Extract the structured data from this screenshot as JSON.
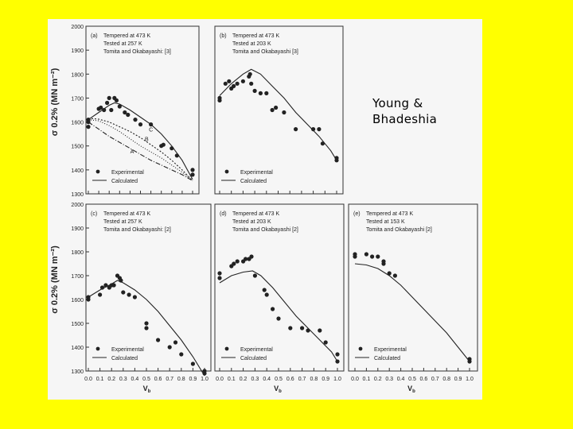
{
  "credit": {
    "line1": "Young &",
    "line2": "Bhadeshia"
  },
  "colors": {
    "background": "#ffff00",
    "figure": "#f6f6f6",
    "ink": "#222222"
  },
  "chart_data": [
    {
      "panel": "(a)",
      "type": "scatter",
      "notes": [
        "Tempered at 473 K",
        "Tested at 257 K",
        "Tomita and Okabayashi: [3]"
      ],
      "ylabel": "σ 0.2% (MN m⁻²)",
      "ylim": [
        1300,
        2000
      ],
      "y_ticks": [
        "2000",
        "1900",
        "1800",
        "1700",
        "1600",
        "1500",
        "1400",
        "1300"
      ],
      "x_ticks": [],
      "curve_labels": [
        "C",
        "B",
        "A"
      ],
      "legend": [
        "Experimental",
        "Calculated"
      ],
      "experimental": [
        [
          0.0,
          1600
        ],
        [
          0.0,
          1580
        ],
        [
          0.0,
          1610
        ],
        [
          0.1,
          1655
        ],
        [
          0.12,
          1660
        ],
        [
          0.15,
          1650
        ],
        [
          0.18,
          1680
        ],
        [
          0.2,
          1700
        ],
        [
          0.22,
          1650
        ],
        [
          0.25,
          1700
        ],
        [
          0.27,
          1690
        ],
        [
          0.3,
          1665
        ],
        [
          0.35,
          1640
        ],
        [
          0.38,
          1630
        ],
        [
          0.45,
          1610
        ],
        [
          0.5,
          1590
        ],
        [
          0.6,
          1590
        ],
        [
          0.7,
          1500
        ],
        [
          0.72,
          1505
        ],
        [
          0.8,
          1490
        ],
        [
          0.85,
          1460
        ],
        [
          1.0,
          1400
        ],
        [
          1.0,
          1380
        ]
      ],
      "calculated": [
        {
          "label": "",
          "x": [
            0.0,
            0.1,
            0.2,
            0.25,
            0.3,
            0.4,
            0.5,
            0.6,
            0.7,
            0.8,
            0.9,
            1.0
          ],
          "y": [
            1610,
            1640,
            1670,
            1680,
            1675,
            1650,
            1620,
            1590,
            1550,
            1500,
            1440,
            1360
          ]
        },
        {
          "label": "C",
          "x": [
            0.0,
            0.1,
            0.2,
            0.3,
            0.4,
            0.5,
            0.6,
            0.7,
            0.8,
            0.9,
            1.0
          ],
          "y": [
            1615,
            1612,
            1600,
            1580,
            1560,
            1535,
            1505,
            1475,
            1440,
            1400,
            1355
          ]
        },
        {
          "label": "B",
          "x": [
            0.0,
            0.1,
            0.2,
            0.3,
            0.4,
            0.5,
            0.6,
            0.7,
            0.8,
            0.9,
            1.0
          ],
          "y": [
            1610,
            1605,
            1585,
            1560,
            1530,
            1500,
            1475,
            1450,
            1420,
            1390,
            1355
          ]
        },
        {
          "label": "A",
          "x": [
            0.0,
            0.1,
            0.2,
            0.3,
            0.4,
            0.5,
            0.6,
            0.7,
            0.8,
            0.9,
            1.0
          ],
          "y": [
            1600,
            1570,
            1540,
            1515,
            1490,
            1465,
            1440,
            1420,
            1400,
            1380,
            1355
          ]
        }
      ]
    },
    {
      "panel": "(b)",
      "type": "scatter",
      "notes": [
        "Tempered at 473 K",
        "Tested at 203 K",
        "Tomita and Okabayashi [3]"
      ],
      "ylim": [
        1300,
        2000
      ],
      "x_ticks": [],
      "legend": [
        "Experimental",
        "Calculated"
      ],
      "experimental": [
        [
          0.0,
          1690
        ],
        [
          0.0,
          1700
        ],
        [
          0.05,
          1760
        ],
        [
          0.08,
          1770
        ],
        [
          0.1,
          1740
        ],
        [
          0.12,
          1750
        ],
        [
          0.15,
          1760
        ],
        [
          0.2,
          1770
        ],
        [
          0.25,
          1790
        ],
        [
          0.26,
          1800
        ],
        [
          0.27,
          1760
        ],
        [
          0.3,
          1730
        ],
        [
          0.35,
          1720
        ],
        [
          0.4,
          1720
        ],
        [
          0.45,
          1650
        ],
        [
          0.48,
          1660
        ],
        [
          0.55,
          1640
        ],
        [
          0.65,
          1570
        ],
        [
          0.8,
          1570
        ],
        [
          0.85,
          1570
        ],
        [
          0.88,
          1510
        ],
        [
          1.0,
          1450
        ],
        [
          1.0,
          1440
        ]
      ],
      "calculated": [
        {
          "label": "",
          "x": [
            0.0,
            0.1,
            0.2,
            0.27,
            0.35,
            0.45,
            0.55,
            0.65,
            0.75,
            0.85,
            0.95,
            1.0
          ],
          "y": [
            1710,
            1760,
            1800,
            1820,
            1800,
            1750,
            1700,
            1640,
            1590,
            1540,
            1480,
            1440
          ]
        }
      ]
    },
    {
      "panel": "(c)",
      "type": "scatter",
      "notes": [
        "Tempered at 473 K",
        "Tested at 257 K",
        "Tomita and Okabayashi: [2]"
      ],
      "ylabel": "σ 0.2% (MN m⁻²)",
      "xlabel": "V_b",
      "ylim": [
        1300,
        2000
      ],
      "y_ticks": [
        "2000",
        "1900",
        "1800",
        "1700",
        "1600",
        "1500",
        "1400",
        "1300"
      ],
      "x_ticks": [
        "0.0",
        "0.1",
        "0.2",
        "0.3",
        "0.4",
        "0.5",
        "0.6",
        "0.7",
        "0.8",
        "0.9",
        "1.0"
      ],
      "legend": [
        "Experimental",
        "Calculated"
      ],
      "experimental": [
        [
          0.0,
          1600
        ],
        [
          0.0,
          1610
        ],
        [
          0.1,
          1620
        ],
        [
          0.12,
          1650
        ],
        [
          0.15,
          1660
        ],
        [
          0.18,
          1650
        ],
        [
          0.2,
          1660
        ],
        [
          0.22,
          1660
        ],
        [
          0.25,
          1700
        ],
        [
          0.27,
          1690
        ],
        [
          0.28,
          1680
        ],
        [
          0.3,
          1630
        ],
        [
          0.35,
          1620
        ],
        [
          0.4,
          1610
        ],
        [
          0.5,
          1500
        ],
        [
          0.5,
          1480
        ],
        [
          0.6,
          1430
        ],
        [
          0.7,
          1400
        ],
        [
          0.75,
          1420
        ],
        [
          0.8,
          1370
        ],
        [
          0.9,
          1330
        ],
        [
          1.0,
          1300
        ],
        [
          1.0,
          1290
        ]
      ],
      "calculated": [
        {
          "label": "",
          "x": [
            0.0,
            0.1,
            0.2,
            0.25,
            0.3,
            0.4,
            0.5,
            0.6,
            0.7,
            0.8,
            0.9,
            1.0
          ],
          "y": [
            1610,
            1640,
            1665,
            1680,
            1670,
            1640,
            1600,
            1550,
            1490,
            1430,
            1360,
            1280
          ]
        }
      ]
    },
    {
      "panel": "(d)",
      "type": "scatter",
      "notes": [
        "Tempered at 473 K",
        "Tested at 203 K",
        "Tomita and Okabayashi [2]"
      ],
      "xlabel": "V_b",
      "ylim": [
        1300,
        2000
      ],
      "x_ticks": [
        "0.0",
        "0.1",
        "0.2",
        "0.3",
        "0.4",
        "0.5",
        "0.6",
        "0.7",
        "0.8",
        "0.9",
        "1.0"
      ],
      "legend": [
        "Experimental",
        "Calculated"
      ],
      "experimental": [
        [
          0.0,
          1690
        ],
        [
          0.0,
          1710
        ],
        [
          0.1,
          1740
        ],
        [
          0.12,
          1750
        ],
        [
          0.15,
          1760
        ],
        [
          0.2,
          1760
        ],
        [
          0.22,
          1770
        ],
        [
          0.25,
          1770
        ],
        [
          0.27,
          1780
        ],
        [
          0.3,
          1700
        ],
        [
          0.38,
          1640
        ],
        [
          0.4,
          1620
        ],
        [
          0.45,
          1560
        ],
        [
          0.5,
          1520
        ],
        [
          0.6,
          1480
        ],
        [
          0.7,
          1480
        ],
        [
          0.75,
          1470
        ],
        [
          0.85,
          1470
        ],
        [
          0.9,
          1420
        ],
        [
          1.0,
          1370
        ],
        [
          1.0,
          1340
        ]
      ],
      "calculated": [
        {
          "label": "",
          "x": [
            0.0,
            0.1,
            0.2,
            0.28,
            0.35,
            0.45,
            0.55,
            0.65,
            0.75,
            0.85,
            0.95,
            1.0
          ],
          "y": [
            1670,
            1700,
            1715,
            1720,
            1700,
            1650,
            1590,
            1530,
            1480,
            1430,
            1380,
            1340
          ]
        }
      ]
    },
    {
      "panel": "(e)",
      "type": "scatter",
      "notes": [
        "Tempered at 473 K",
        "Tested at 153 K",
        "Tomita and Okabayashi [2]"
      ],
      "xlabel": "V_b",
      "ylim": [
        1300,
        2000
      ],
      "x_ticks": [
        "0.0",
        "0.1",
        "0.2",
        "0.3",
        "0.4",
        "0.5",
        "0.6",
        "0.7",
        "0.8",
        "0.9",
        "1.0"
      ],
      "legend": [
        "Experimental",
        "Calculated"
      ],
      "experimental": [
        [
          0.0,
          1790
        ],
        [
          0.0,
          1780
        ],
        [
          0.1,
          1790
        ],
        [
          0.15,
          1780
        ],
        [
          0.2,
          1780
        ],
        [
          0.25,
          1760
        ],
        [
          0.25,
          1750
        ],
        [
          0.3,
          1710
        ],
        [
          0.35,
          1700
        ],
        [
          1.0,
          1350
        ],
        [
          1.0,
          1340
        ]
      ],
      "calculated": [
        {
          "label": "",
          "x": [
            0.0,
            0.1,
            0.2,
            0.3,
            0.4,
            0.5,
            0.6,
            0.7,
            0.8,
            0.9,
            1.0
          ],
          "y": [
            1750,
            1745,
            1730,
            1700,
            1660,
            1610,
            1560,
            1510,
            1460,
            1400,
            1340
          ]
        }
      ]
    }
  ]
}
